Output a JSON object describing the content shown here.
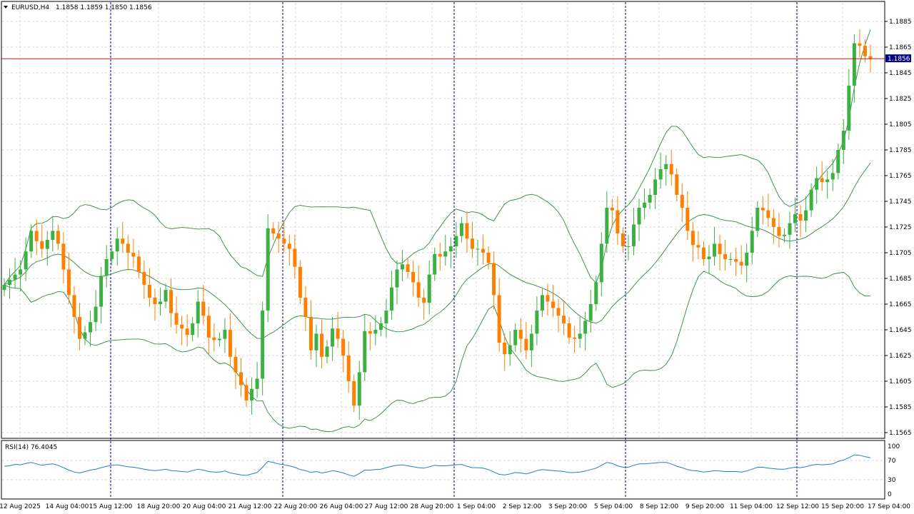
{
  "header": {
    "symbol_label": "EURUSD,H4",
    "ohlc": "1.1858 1.1859 1.1850 1.1856"
  },
  "current_price_label": "1.1856",
  "rsi": {
    "label": "RSI(14) 76.4045",
    "levels": [
      "100",
      "70",
      "30",
      "0"
    ]
  },
  "colors": {
    "bull": "#3cb043",
    "bear": "#ff7f00",
    "bands": "#2e8b3e",
    "rsi_line": "#1e7fd1",
    "price_line": "#e01010",
    "grid": "#d8d8d8",
    "separator": "#000080"
  },
  "chart_data": {
    "type": "candlestick",
    "symbol": "EURUSD",
    "timeframe": "H4",
    "y_ticks": [
      "1.1885",
      "1.1865",
      "1.1845",
      "1.1825",
      "1.1805",
      "1.1785",
      "1.1765",
      "1.1745",
      "1.1725",
      "1.1705",
      "1.1685",
      "1.1665",
      "1.1645",
      "1.1625",
      "1.1605",
      "1.1585",
      "1.1565"
    ],
    "ylim": [
      1.156,
      1.1896
    ],
    "x_ticks": [
      "12 Aug 2025",
      "14 Aug 04:00",
      "15 Aug 12:00",
      "18 Aug 20:00",
      "20 Aug 04:00",
      "21 Aug 12:00",
      "22 Aug 20:00",
      "26 Aug 04:00",
      "27 Aug 12:00",
      "28 Aug 20:00",
      "1 Sep 04:00",
      "2 Sep 12:00",
      "3 Sep 20:00",
      "5 Sep 04:00",
      "8 Sep 12:00",
      "9 Sep 20:00",
      "11 Sep 04:00",
      "12 Sep 12:00",
      "15 Sep 20:00",
      "17 Sep 04:00"
    ],
    "day_separators_after_tick": [
      "14 Aug 04:00",
      "21 Aug 12:00",
      "28 Aug 20:00",
      "5 Sep 04:00",
      "12 Sep 12:00"
    ],
    "current_price": 1.1856,
    "closes": [
      1.168,
      1.1684,
      1.1688,
      1.1692,
      1.1706,
      1.1722,
      1.1714,
      1.1708,
      1.1715,
      1.1722,
      1.1712,
      1.1692,
      1.1672,
      1.1655,
      1.1638,
      1.1643,
      1.1651,
      1.1663,
      1.1687,
      1.17,
      1.1706,
      1.1716,
      1.1712,
      1.1705,
      1.1702,
      1.169,
      1.168,
      1.167,
      1.1665,
      1.1667,
      1.1676,
      1.1658,
      1.1649,
      1.1646,
      1.1641,
      1.165,
      1.1667,
      1.1656,
      1.1639,
      1.1637,
      1.1638,
      1.1645,
      1.1624,
      1.1612,
      1.1602,
      1.159,
      1.1599,
      1.1607,
      1.166,
      1.1724,
      1.172,
      1.1716,
      1.1712,
      1.1708,
      1.1694,
      1.167,
      1.1655,
      1.1629,
      1.1642,
      1.1624,
      1.1632,
      1.1646,
      1.1638,
      1.1625,
      1.1605,
      1.1586,
      1.1612,
      1.1644,
      1.1642,
      1.1645,
      1.165,
      1.166,
      1.1678,
      1.1692,
      1.1696,
      1.169,
      1.1682,
      1.167,
      1.1666,
      1.1688,
      1.1704,
      1.1702,
      1.1706,
      1.171,
      1.1718,
      1.1728,
      1.1716,
      1.1708,
      1.1708,
      1.1705,
      1.1697,
      1.1672,
      1.1635,
      1.1626,
      1.1633,
      1.1645,
      1.1638,
      1.1629,
      1.1642,
      1.166,
      1.1672,
      1.1667,
      1.1662,
      1.1656,
      1.165,
      1.1639,
      1.1638,
      1.1642,
      1.1652,
      1.1665,
      1.1682,
      1.1712,
      1.174,
      1.1738,
      1.172,
      1.171,
      1.171,
      1.1727,
      1.174,
      1.1744,
      1.175,
      1.1762,
      1.177,
      1.1774,
      1.1766,
      1.175,
      1.174,
      1.1722,
      1.1711,
      1.1709,
      1.17,
      1.1702,
      1.1712,
      1.1704,
      1.17,
      1.17,
      1.1698,
      1.1695,
      1.1705,
      1.1722,
      1.174,
      1.1738,
      1.1732,
      1.1725,
      1.1718,
      1.1719,
      1.1728,
      1.1735,
      1.173,
      1.1738,
      1.1754,
      1.1763,
      1.176,
      1.1762,
      1.1767,
      1.1785,
      1.18,
      1.1835,
      1.1868,
      1.1866,
      1.1858,
      1.1856
    ],
    "rsi_values": [
      58,
      59,
      62,
      61,
      64,
      66,
      63,
      60,
      62,
      63,
      60,
      55,
      50,
      46,
      44,
      47,
      50,
      52,
      55,
      58,
      60,
      61,
      59,
      57,
      56,
      54,
      52,
      50,
      49,
      50,
      52,
      49,
      48,
      47,
      46,
      49,
      52,
      50,
      47,
      46,
      46,
      48,
      44,
      42,
      40,
      39,
      42,
      45,
      56,
      68,
      66,
      63,
      61,
      59,
      56,
      51,
      49,
      45,
      47,
      44,
      46,
      49,
      47,
      44,
      40,
      37,
      43,
      50,
      50,
      51,
      52,
      55,
      58,
      60,
      61,
      59,
      57,
      55,
      54,
      57,
      60,
      59,
      59,
      60,
      61,
      62,
      58,
      55,
      55,
      54,
      51,
      46,
      41,
      40,
      42,
      45,
      44,
      42,
      45,
      49,
      51,
      50,
      49,
      48,
      47,
      45,
      45,
      46,
      48,
      51,
      54,
      60,
      66,
      64,
      59,
      56,
      56,
      60,
      63,
      63,
      64,
      65,
      66,
      66,
      63,
      58,
      55,
      51,
      49,
      48,
      46,
      47,
      49,
      48,
      47,
      47,
      47,
      46,
      48,
      52,
      56,
      56,
      54,
      53,
      52,
      52,
      54,
      56,
      55,
      57,
      60,
      62,
      61,
      62,
      63,
      68,
      71,
      76,
      82,
      81,
      78,
      76
    ]
  }
}
